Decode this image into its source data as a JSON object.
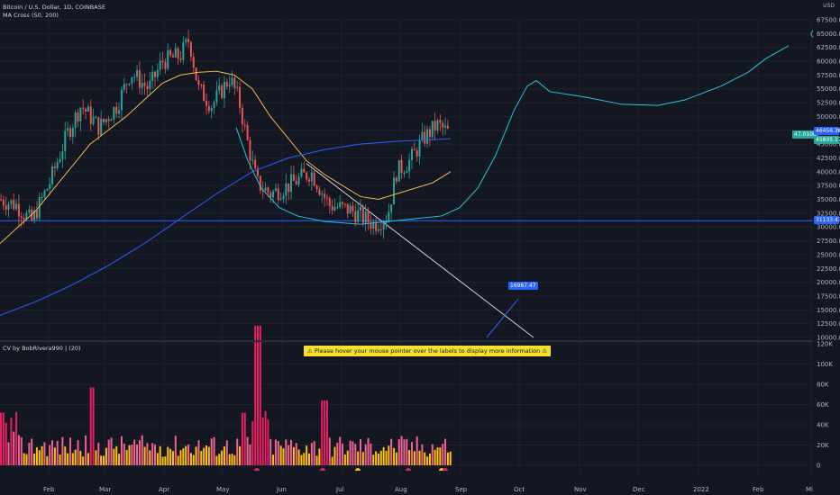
{
  "header": {
    "symbol": "Bitcoin / U.S. Dollar, 1D, COINBASE",
    "indicator_ma": "MA Cross (50, 200)",
    "indicator_cv": "CV by BobRivera990 | (20)"
  },
  "banner": {
    "text": "⚠ Please hover your mouse pointer over the labels to display more information ⚠"
  },
  "currency": "USD",
  "price_axis": {
    "ticks": [
      "67500.00",
      "65000.00",
      "62500.00",
      "60000.00",
      "57500.00",
      "55000.00",
      "52500.00",
      "50000.00",
      "47500.00",
      "45000.00",
      "42500.00",
      "40000.00",
      "37500.00",
      "35000.00",
      "32500.00",
      "30000.00",
      "27500.00",
      "25000.00",
      "22500.00",
      "20000.00",
      "17500.00",
      "15000.00",
      "12500.00",
      "10000.00"
    ],
    "values": [
      67500,
      65000,
      62500,
      60000,
      57500,
      55000,
      52500,
      50000,
      47500,
      45000,
      42500,
      40000,
      37500,
      35000,
      32500,
      30000,
      27500,
      25000,
      22500,
      20000,
      17500,
      15000,
      12500,
      10000
    ],
    "current_price_label": "47.0100",
    "ma_label_1": "46456.36",
    "ma_label_2": "45805.17",
    "hline_label": "31133.43",
    "target_label": "16967.47"
  },
  "volume_axis": {
    "ticks": [
      "120K",
      "100K",
      "80K",
      "60K",
      "40K",
      "20K",
      "0"
    ],
    "values": [
      120,
      100,
      80,
      60,
      40,
      20,
      0
    ]
  },
  "time_axis": {
    "labels": [
      "Feb",
      "Mar",
      "Apr",
      "May",
      "Jun",
      "Jul",
      "Aug",
      "Sep",
      "Oct",
      "Nov",
      "Dec",
      "2022",
      "Feb",
      "Mi"
    ]
  },
  "colors": {
    "background": "#131722",
    "up": "#26a69a",
    "down": "#ef5350",
    "ma50": "#f0b94a",
    "ma200": "#2962ff",
    "projection": "#26c6da",
    "hline": "#2962ff",
    "trendline": "#d1d4dc",
    "vol_high": "#e91e63",
    "vol_low": "#ffc107"
  }
}
